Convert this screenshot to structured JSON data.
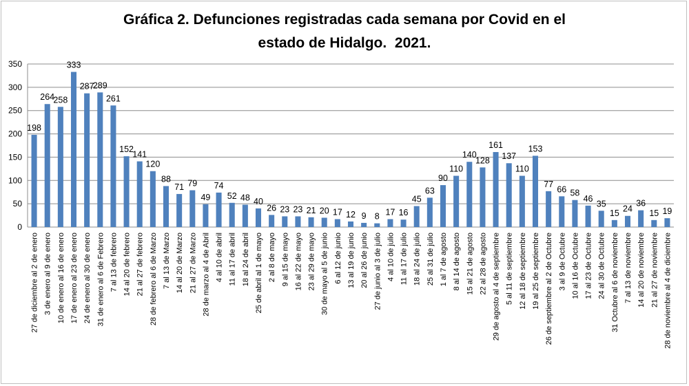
{
  "chart_data": {
    "type": "bar",
    "title_line1": "Gráfica 2. Defunciones registradas cada semana por Covid en el",
    "title_line2": "estado de Hidalgo.  2021.",
    "xlabel": "",
    "ylabel": "",
    "ylim": [
      0,
      350
    ],
    "yticks": [
      0,
      50,
      100,
      150,
      200,
      250,
      300,
      350
    ],
    "grid": true,
    "legend": "none",
    "bar_color": "#4F81BD",
    "categories": [
      "27 de diciembre al 2 de enero",
      "3 de enero al 9 de enero",
      "10 de enero al 16 de enero",
      "17 de enero al 23 de enero",
      "24 de enero al 30 de enero",
      "31 de enero al 6 de Febrero",
      "7 al 13 de febrero",
      "14 al 20 de febrero",
      "21 al 27 de febrero",
      "28 de febrero al 6 de Marzo",
      "7 al 13 de Marzo",
      "14 al 20 de Marzo",
      "21 al 27 de Marzo",
      "28 de marzo al 4 de Abril",
      "4 al 10 de abril",
      "11 al 17 de abril",
      "18 al 24 de abril",
      "25 de abril al 1 de mayo",
      "2 al 8 de mayo",
      "9 al 15 de mayo",
      "16 al 22 de mayo",
      "23 al 29 de mayo",
      "30 de mayo al 5 de junio",
      "6 al 12 de junio",
      "13 al 19 de junio",
      "20 al 26 de junio",
      "27 de junio al 3 de julio",
      "4 al 10 de julio",
      "11 al 17 de julio",
      "18 al 24 de julio",
      "25 al 31 de julio",
      "1 al 7 de agosto",
      "8 al 14 de agosto",
      "15 al 21 de agosto",
      "22 al 28 de agosto",
      "29 de agosto al 4 de septiembre",
      "5 al 11 de septiembre",
      "12 al 18 de septiembre",
      "19 al 25 de septiembre",
      "26 de septiembre al 2 de Octubre",
      "3 al 9 de Octubre",
      "10 al 16 de Octubre",
      "17 al 23 de Octubre",
      "24 al 30 de Octubre",
      "31 Octubre al 6 de noviembre",
      "7 al 13 de noviembre",
      "14 al 20 de noviembre",
      "21 al 27 de noviembre",
      "28 de noviembre al 4 de diciembre"
    ],
    "values": [
      198,
      264,
      258,
      333,
      287,
      289,
      261,
      152,
      141,
      120,
      88,
      71,
      79,
      49,
      74,
      52,
      48,
      40,
      26,
      23,
      23,
      21,
      20,
      17,
      12,
      9,
      8,
      17,
      16,
      45,
      63,
      90,
      110,
      140,
      128,
      161,
      137,
      110,
      153,
      77,
      66,
      58,
      46,
      35,
      15,
      24,
      36,
      15,
      19
    ]
  }
}
